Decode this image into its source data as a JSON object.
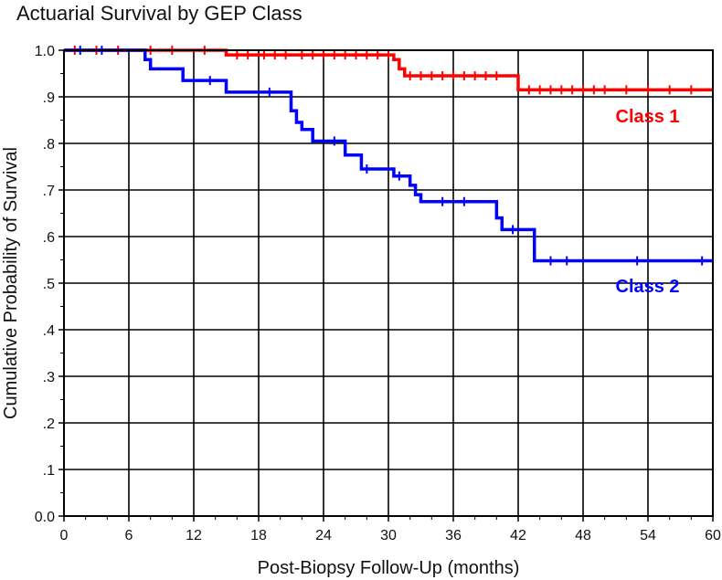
{
  "chart_data": {
    "type": "line",
    "title": "Actuarial Survival by GEP Class",
    "xlabel": "Post-Biopsy Follow-Up (months)",
    "ylabel": "Cumulative Probability of Survival",
    "xlim": [
      0,
      60
    ],
    "ylim": [
      0,
      1.0
    ],
    "x_ticks": [
      0,
      6,
      12,
      18,
      24,
      30,
      36,
      42,
      48,
      54,
      60
    ],
    "x_tick_labels": [
      "0",
      "6",
      "12",
      "18",
      "24",
      "30",
      "36",
      "42",
      "48",
      "54",
      "60"
    ],
    "y_ticks": [
      0,
      0.1,
      0.2,
      0.3,
      0.4,
      0.5,
      0.6,
      0.7,
      0.8,
      0.9,
      1.0
    ],
    "y_tick_labels": [
      "0.0",
      ".1",
      ".2",
      ".3",
      ".4",
      ".5",
      ".6",
      ".7",
      ".8",
      ".9",
      "1.0"
    ],
    "grid": true,
    "series": [
      {
        "name": "Class 1",
        "color": "#ff0000",
        "step_x": [
          0,
          15,
          30.5,
          31,
          31.5,
          42,
          60
        ],
        "step_y": [
          1.0,
          0.99,
          0.98,
          0.96,
          0.945,
          0.915,
          0.915
        ],
        "censor_x": [
          1,
          3,
          5,
          8,
          10,
          13,
          16,
          17,
          18.5,
          19.5,
          20.5,
          22,
          23,
          24,
          25,
          26,
          27,
          28,
          29,
          30,
          32,
          33,
          34,
          35,
          36,
          37,
          38,
          39,
          40,
          43,
          44,
          45,
          46,
          47,
          48,
          49,
          50,
          52,
          54,
          56,
          58
        ]
      },
      {
        "name": "Class 2",
        "color": "#0000ff",
        "step_x": [
          0,
          7.5,
          8,
          11,
          15,
          21,
          21.5,
          22,
          23,
          26,
          27.5,
          30.5,
          32,
          32.5,
          33,
          40,
          40.5,
          43.5,
          60
        ],
        "step_y": [
          1.0,
          0.98,
          0.96,
          0.935,
          0.91,
          0.87,
          0.845,
          0.83,
          0.805,
          0.775,
          0.745,
          0.73,
          0.71,
          0.69,
          0.675,
          0.64,
          0.615,
          0.548,
          0.548
        ],
        "censor_x": [
          1.5,
          3.5,
          13.5,
          19,
          25,
          28,
          31,
          35,
          37,
          41.5,
          45,
          46.5,
          53,
          59
        ]
      }
    ],
    "annotations": [
      {
        "series": 0,
        "text": "Class 1",
        "x": 51,
        "y": 0.845
      },
      {
        "series": 1,
        "text": "Class 2",
        "x": 51,
        "y": 0.48
      }
    ]
  }
}
